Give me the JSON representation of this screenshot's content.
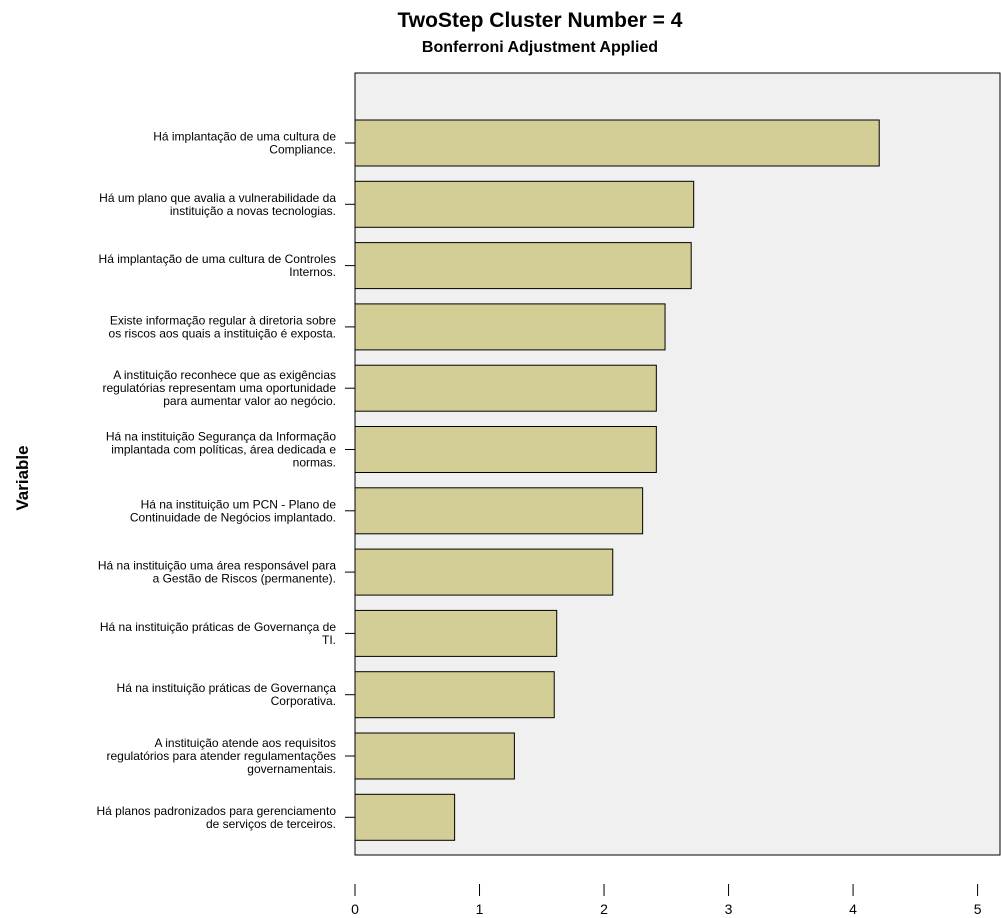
{
  "chart_data": {
    "type": "barh",
    "title": "TwoStep Cluster Number = 4",
    "subtitle": "Bonferroni Adjustment Applied",
    "y_label": "Variable",
    "categories": [
      "Há implantação de uma cultura de\nCompliance.",
      "Há um plano que avalia a vulnerabilidade da\ninstituição a novas tecnologias.",
      "Há implantação de uma cultura de Controles\nInternos.",
      "Existe informação regular à diretoria sobre\nos riscos aos quais a instituição é exposta.",
      "A instituição reconhece que as exigências\nregulatórias representam uma oportunidade\npara aumentar valor ao negócio.",
      "Há na instituição Segurança da Informação\nimplantada com políticas, área dedicada e\nnormas.",
      "Há na instituição um PCN - Plano de\nContinuidade de Negócios implantado.",
      "Há na instituição uma área responsável para\na Gestão de Riscos (permanente).",
      "Há na instituição práticas de Governança de\nTI.",
      "Há na instituição práticas de Governança\nCorporativa.",
      "A instituição atende aos requisitos\nregulatórios para atender regulamentações\ngovernamentais.",
      "Há planos padronizados para gerenciamento\nde serviços de terceiros."
    ],
    "values": [
      4.21,
      2.72,
      2.7,
      2.49,
      2.42,
      2.42,
      2.31,
      2.07,
      1.62,
      1.6,
      1.28,
      0.8
    ],
    "color": "#d3cd96",
    "xlim": [
      0,
      5.18
    ],
    "xticks": [
      0,
      1,
      2,
      3,
      4,
      5
    ]
  }
}
